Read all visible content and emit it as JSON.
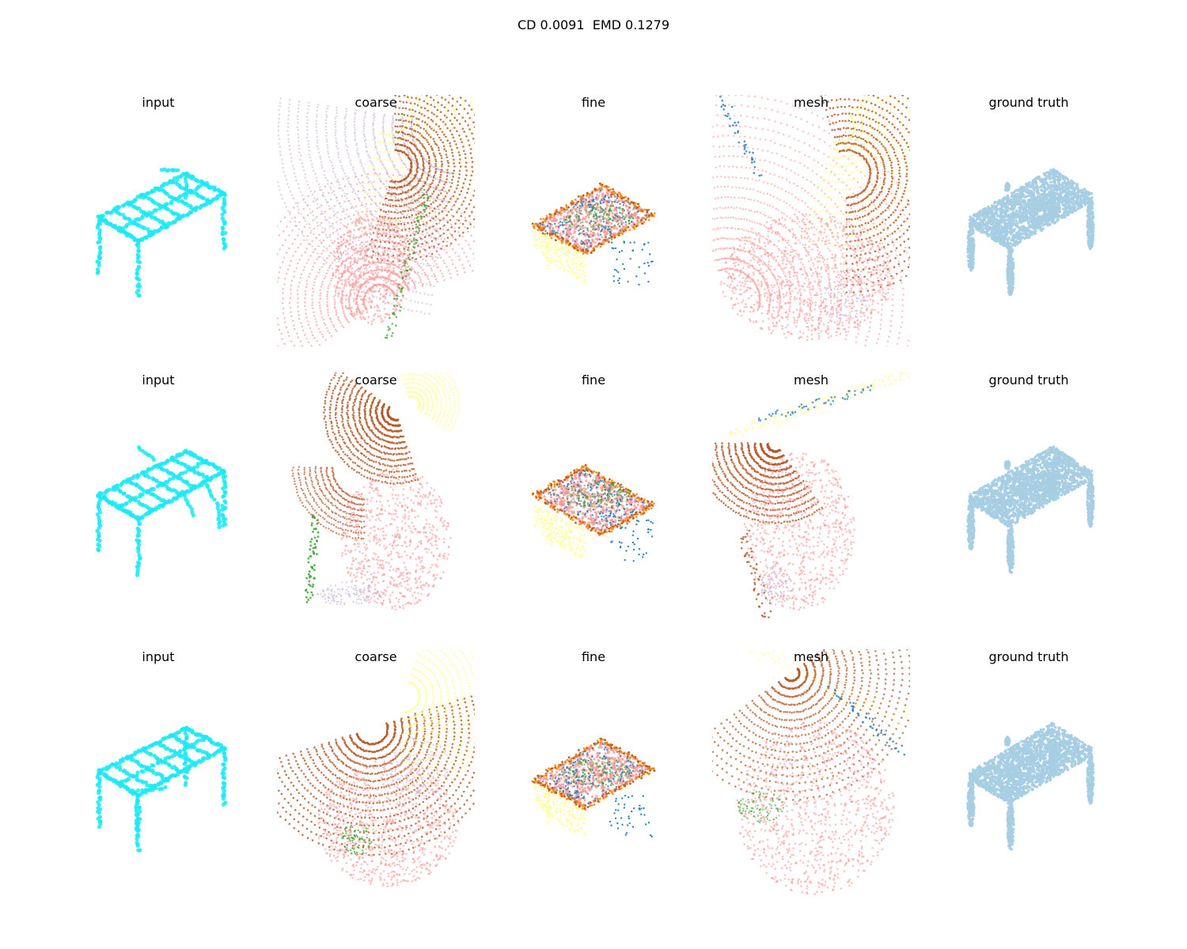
{
  "suptitle": "CD 0.0091  EMD 0.1279",
  "colors": {
    "input": "#1de9f5",
    "ground_truth": "#a6cee3",
    "palette": [
      "#fb9a99",
      "#b15928",
      "#ffff99",
      "#1f78b4",
      "#ff7f00",
      "#33a02c",
      "#cab2d6",
      "#a6cee3"
    ]
  },
  "rows": [
    {
      "panels": [
        {
          "title": "input",
          "kind": "input-cloud"
        },
        {
          "title": "coarse",
          "kind": "coarse-cloud"
        },
        {
          "title": "fine",
          "kind": "fine-cloud"
        },
        {
          "title": "mesh",
          "kind": "mesh-cloud"
        },
        {
          "title": "ground truth",
          "kind": "gt-cloud"
        }
      ]
    },
    {
      "panels": [
        {
          "title": "input",
          "kind": "input-cloud"
        },
        {
          "title": "coarse",
          "kind": "coarse-cloud"
        },
        {
          "title": "fine",
          "kind": "fine-cloud"
        },
        {
          "title": "mesh",
          "kind": "mesh-cloud"
        },
        {
          "title": "ground truth",
          "kind": "gt-cloud"
        }
      ]
    },
    {
      "panels": [
        {
          "title": "input",
          "kind": "input-cloud"
        },
        {
          "title": "coarse",
          "kind": "coarse-cloud"
        },
        {
          "title": "fine",
          "kind": "fine-cloud"
        },
        {
          "title": "mesh",
          "kind": "mesh-cloud"
        },
        {
          "title": "ground truth",
          "kind": "gt-cloud"
        }
      ]
    }
  ]
}
